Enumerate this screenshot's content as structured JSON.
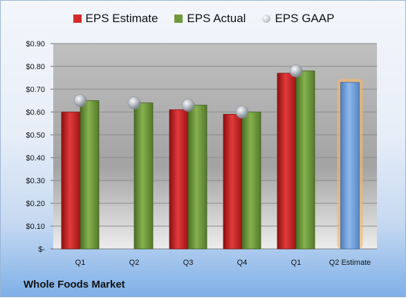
{
  "company": "Whole Foods Market",
  "colors": {
    "estimate": "#d42a2a",
    "actual": "#6f9a3a",
    "gaap": "#b9bfc8",
    "forecast": "#7aa6dc",
    "forecast_glow": "#f4b66a"
  },
  "chart_data": {
    "type": "bar",
    "categories": [
      "Q1",
      "Q2",
      "Q3",
      "Q4",
      "Q1",
      "Q2 Estimate"
    ],
    "series": [
      {
        "name": "EPS Estimate",
        "values": [
          0.6,
          null,
          0.61,
          0.59,
          0.77,
          0.73
        ]
      },
      {
        "name": "EPS Actual",
        "values": [
          0.65,
          0.64,
          0.63,
          0.6,
          0.78,
          null
        ]
      },
      {
        "name": "EPS GAAP",
        "values": [
          0.65,
          0.64,
          0.63,
          0.6,
          0.78,
          null
        ]
      }
    ],
    "yticks": [
      "$-",
      "$0.10",
      "$0.20",
      "$0.30",
      "$0.40",
      "$0.50",
      "$0.60",
      "$0.70",
      "$0.80",
      "$0.90"
    ],
    "ylim": [
      0,
      0.9
    ],
    "grid": true,
    "legend_position": "top"
  }
}
